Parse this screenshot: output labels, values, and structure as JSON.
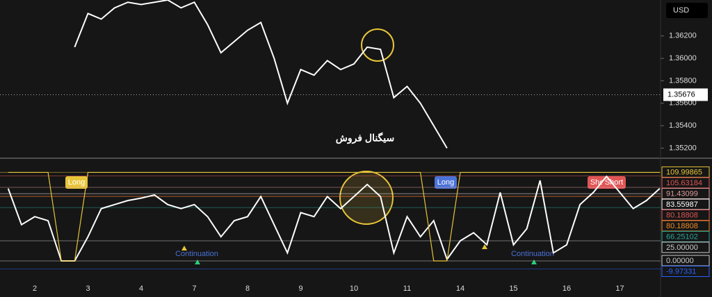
{
  "chart_data": [
    {
      "type": "line",
      "currency": "USD",
      "annotation": "سیگنال فروش",
      "color": "#ffffff",
      "x": [
        0.75,
        1,
        1.25,
        1.5,
        1.75,
        2,
        2.25,
        2.5,
        2.75,
        3,
        3.25,
        3.5,
        3.75,
        4,
        4.25,
        4.5,
        4.75,
        5,
        5.25,
        5.5,
        5.75,
        6,
        6.25,
        6.5,
        6.75,
        7,
        7.25,
        7.5,
        7.75
      ],
      "values": [
        1.361,
        1.364,
        1.3635,
        1.3645,
        1.365,
        1.3648,
        1.365,
        1.3652,
        1.3645,
        1.365,
        1.363,
        1.3605,
        1.3615,
        1.3625,
        1.3632,
        1.36,
        1.356,
        1.359,
        1.3585,
        1.3598,
        1.359,
        1.3595,
        1.361,
        1.3608,
        1.3565,
        1.3575,
        1.356,
        1.354,
        1.352
      ],
      "last_price": 1.35676,
      "ylim": [
        1.3511,
        1.3652
      ],
      "yticks": [
        {
          "value": 1.362,
          "label": "1.36200"
        },
        {
          "value": 1.36,
          "label": "1.36000"
        },
        {
          "value": 1.358,
          "label": "1.35800"
        },
        {
          "value": 1.356,
          "label": "1.35600"
        },
        {
          "value": 1.354,
          "label": "1.35400"
        },
        {
          "value": 1.352,
          "label": "1.35200"
        }
      ]
    },
    {
      "type": "line",
      "x": [
        -0.5,
        -0.25,
        0,
        0.25,
        0.5,
        0.75,
        1,
        1.25,
        1.5,
        1.75,
        2,
        2.25,
        2.5,
        2.75,
        3,
        3.25,
        3.5,
        3.75,
        4,
        4.25,
        4.5,
        4.75,
        5,
        5.25,
        5.5,
        5.75,
        6,
        6.25,
        6.5,
        6.75,
        7,
        7.25,
        7.5,
        7.75,
        8,
        8.25,
        8.5,
        8.75,
        9,
        9.25,
        9.5,
        9.75,
        10,
        10.25,
        10.5,
        10.75,
        11,
        11.25,
        11.5,
        11.75
      ],
      "series": [
        {
          "color": "#ffffff",
          "values": [
            90,
            45,
            55,
            50,
            0,
            0,
            30,
            65,
            70,
            75,
            78,
            82,
            70,
            65,
            70,
            55,
            30,
            50,
            55,
            80,
            45,
            10,
            60,
            55,
            80,
            65,
            80,
            95,
            80,
            10,
            55,
            30,
            50,
            2,
            25,
            35,
            20,
            85,
            20,
            40,
            100,
            10,
            20,
            70,
            85,
            105,
            85,
            65,
            75,
            90
          ]
        },
        {
          "color": "#e8c53a",
          "values": [
            110,
            110,
            110,
            110,
            0,
            0,
            110,
            110,
            110,
            110,
            110,
            110,
            110,
            110,
            110,
            110,
            110,
            110,
            110,
            110,
            110,
            110,
            110,
            110,
            110,
            110,
            110,
            110,
            110,
            110,
            110,
            110,
            0,
            0,
            110,
            110,
            110,
            110,
            110,
            110,
            110,
            110,
            110,
            110,
            110,
            110,
            110,
            110,
            110,
            110
          ]
        }
      ],
      "categories": [
        "2",
        "3",
        "4",
        "7",
        "8",
        "9",
        "10",
        "11",
        "14",
        "15",
        "16",
        "17"
      ],
      "levels": [
        109.99865,
        105.63184,
        91.43099,
        83.55987,
        80.18808,
        80.18808,
        66.25102,
        {
          "value": 25,
          "label": "25.00000"
        },
        {
          "value": 0,
          "label": "0.00000"
        },
        -9.97331
      ],
      "level_colors": [
        "#e8c53a",
        "#e05555",
        "#d99",
        "#ffffff",
        "#e05555",
        "#f08a24",
        "#26a69a",
        "#cccccc",
        "#cccccc",
        "#2962ff"
      ],
      "ylim": [
        -44.8,
        127.6
      ],
      "signals": [
        "Long",
        "Long",
        "Short",
        "Short"
      ],
      "notes": [
        "Continuation",
        "Continuation"
      ]
    }
  ]
}
